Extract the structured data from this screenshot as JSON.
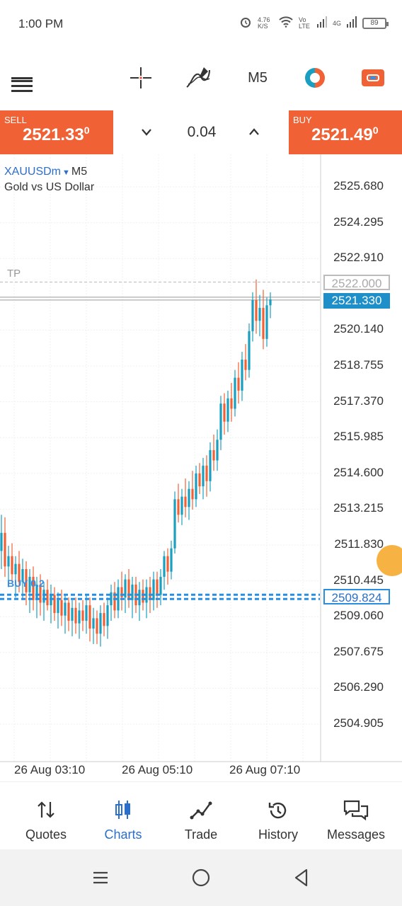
{
  "status_bar": {
    "time": "1:00 PM",
    "net_speed": "4.76 K/S",
    "sim1": "Vo LTE",
    "sim2": "4G",
    "battery": "89"
  },
  "toolbar": {
    "icons": [
      "menu-icon",
      "crosshair-icon",
      "indicator-icon",
      "trade-color-icon",
      "account-icon"
    ],
    "timeframe": "M5"
  },
  "trade": {
    "sell_label": "SELL",
    "sell_price_main": "2521.33",
    "sell_price_sup": "0",
    "buy_label": "BUY",
    "buy_price_main": "2521.49",
    "buy_price_sup": "0",
    "volume": "0.04",
    "sell_color": "#f06235",
    "buy_color": "#f06235"
  },
  "chart": {
    "symbol": "XAUUSDm",
    "timeframe": "M5",
    "description": "Gold vs US Dollar",
    "tp_label": "TP",
    "tp_price": "2522.000",
    "bid_price": "2521.330",
    "buy_order_price": "2509.824",
    "buy_order_label": "BUY 0.2",
    "y_ticks": [
      "2525.680",
      "2524.295",
      "2522.910",
      "2520.140",
      "2518.755",
      "2517.370",
      "2515.985",
      "2514.600",
      "2513.215",
      "2511.830",
      "2510.445",
      "2509.060",
      "2507.675",
      "2506.290",
      "2504.905"
    ],
    "x_ticks": [
      "26 Aug 03:10",
      "26 Aug 05:10",
      "26 Aug 07:10"
    ],
    "bull_color": "#1a9fc0",
    "bear_color": "#f06235",
    "line_color": "#2a8ee0"
  },
  "chart_data": {
    "type": "candlestick",
    "symbol": "XAUUSDm",
    "ylim": [
      2503.52,
      2527.07
    ],
    "candles": [
      {
        "o": 2511.6,
        "h": 2513.0,
        "l": 2510.9,
        "c": 2512.3
      },
      {
        "o": 2512.3,
        "h": 2512.9,
        "l": 2510.6,
        "c": 2511.0
      },
      {
        "o": 2511.0,
        "h": 2511.8,
        "l": 2510.2,
        "c": 2511.4
      },
      {
        "o": 2511.4,
        "h": 2511.9,
        "l": 2510.4,
        "c": 2510.7
      },
      {
        "o": 2510.7,
        "h": 2511.4,
        "l": 2509.8,
        "c": 2511.1
      },
      {
        "o": 2511.1,
        "h": 2511.6,
        "l": 2510.0,
        "c": 2510.4
      },
      {
        "o": 2510.4,
        "h": 2511.3,
        "l": 2509.7,
        "c": 2510.9
      },
      {
        "o": 2510.9,
        "h": 2511.2,
        "l": 2509.5,
        "c": 2510.0
      },
      {
        "o": 2510.0,
        "h": 2510.9,
        "l": 2509.2,
        "c": 2510.6
      },
      {
        "o": 2510.6,
        "h": 2511.0,
        "l": 2509.3,
        "c": 2509.7
      },
      {
        "o": 2509.7,
        "h": 2510.6,
        "l": 2509.0,
        "c": 2510.3
      },
      {
        "o": 2510.3,
        "h": 2510.7,
        "l": 2509.1,
        "c": 2509.6
      },
      {
        "o": 2509.6,
        "h": 2510.4,
        "l": 2508.9,
        "c": 2510.1
      },
      {
        "o": 2510.1,
        "h": 2510.5,
        "l": 2509.3,
        "c": 2509.5
      },
      {
        "o": 2509.5,
        "h": 2510.3,
        "l": 2508.8,
        "c": 2509.9
      },
      {
        "o": 2509.9,
        "h": 2510.2,
        "l": 2508.9,
        "c": 2509.2
      },
      {
        "o": 2509.2,
        "h": 2510.0,
        "l": 2508.6,
        "c": 2509.7
      },
      {
        "o": 2509.7,
        "h": 2510.1,
        "l": 2508.7,
        "c": 2509.1
      },
      {
        "o": 2509.1,
        "h": 2509.9,
        "l": 2508.4,
        "c": 2509.6
      },
      {
        "o": 2509.6,
        "h": 2509.8,
        "l": 2508.5,
        "c": 2508.9
      },
      {
        "o": 2508.9,
        "h": 2509.7,
        "l": 2508.3,
        "c": 2509.4
      },
      {
        "o": 2509.4,
        "h": 2509.8,
        "l": 2508.4,
        "c": 2508.8
      },
      {
        "o": 2508.8,
        "h": 2509.6,
        "l": 2508.2,
        "c": 2509.3
      },
      {
        "o": 2509.3,
        "h": 2509.7,
        "l": 2508.5,
        "c": 2508.9
      },
      {
        "o": 2508.9,
        "h": 2509.9,
        "l": 2508.4,
        "c": 2509.5
      },
      {
        "o": 2509.5,
        "h": 2509.8,
        "l": 2508.1,
        "c": 2508.6
      },
      {
        "o": 2508.6,
        "h": 2509.4,
        "l": 2508.0,
        "c": 2509.0
      },
      {
        "o": 2509.0,
        "h": 2509.3,
        "l": 2508.0,
        "c": 2508.4
      },
      {
        "o": 2508.4,
        "h": 2509.5,
        "l": 2507.9,
        "c": 2509.2
      },
      {
        "o": 2509.2,
        "h": 2509.6,
        "l": 2508.3,
        "c": 2508.7
      },
      {
        "o": 2508.7,
        "h": 2509.8,
        "l": 2508.2,
        "c": 2509.5
      },
      {
        "o": 2509.5,
        "h": 2510.3,
        "l": 2508.9,
        "c": 2510.0
      },
      {
        "o": 2510.0,
        "h": 2510.4,
        "l": 2509.0,
        "c": 2509.3
      },
      {
        "o": 2509.3,
        "h": 2510.5,
        "l": 2509.0,
        "c": 2510.2
      },
      {
        "o": 2510.2,
        "h": 2510.8,
        "l": 2509.3,
        "c": 2509.8
      },
      {
        "o": 2509.8,
        "h": 2510.7,
        "l": 2509.2,
        "c": 2510.5
      },
      {
        "o": 2510.5,
        "h": 2510.9,
        "l": 2509.4,
        "c": 2509.7
      },
      {
        "o": 2509.7,
        "h": 2510.6,
        "l": 2509.0,
        "c": 2510.3
      },
      {
        "o": 2510.3,
        "h": 2510.6,
        "l": 2509.2,
        "c": 2509.5
      },
      {
        "o": 2509.5,
        "h": 2510.4,
        "l": 2508.9,
        "c": 2510.1
      },
      {
        "o": 2510.1,
        "h": 2510.5,
        "l": 2509.3,
        "c": 2509.6
      },
      {
        "o": 2509.6,
        "h": 2510.5,
        "l": 2509.0,
        "c": 2510.2
      },
      {
        "o": 2510.2,
        "h": 2510.6,
        "l": 2509.2,
        "c": 2509.7
      },
      {
        "o": 2509.7,
        "h": 2510.8,
        "l": 2509.3,
        "c": 2510.5
      },
      {
        "o": 2510.5,
        "h": 2510.8,
        "l": 2509.4,
        "c": 2509.9
      },
      {
        "o": 2509.9,
        "h": 2510.9,
        "l": 2509.5,
        "c": 2510.6
      },
      {
        "o": 2510.6,
        "h": 2511.6,
        "l": 2510.1,
        "c": 2511.4
      },
      {
        "o": 2511.4,
        "h": 2511.7,
        "l": 2510.3,
        "c": 2510.8
      },
      {
        "o": 2510.8,
        "h": 2512.0,
        "l": 2510.5,
        "c": 2511.7
      },
      {
        "o": 2511.7,
        "h": 2513.9,
        "l": 2511.5,
        "c": 2513.6
      },
      {
        "o": 2513.6,
        "h": 2514.2,
        "l": 2512.7,
        "c": 2513.0
      },
      {
        "o": 2513.0,
        "h": 2514.0,
        "l": 2512.6,
        "c": 2513.7
      },
      {
        "o": 2513.7,
        "h": 2514.4,
        "l": 2512.9,
        "c": 2513.3
      },
      {
        "o": 2513.3,
        "h": 2514.3,
        "l": 2512.8,
        "c": 2514.0
      },
      {
        "o": 2514.0,
        "h": 2514.7,
        "l": 2513.2,
        "c": 2513.6
      },
      {
        "o": 2513.6,
        "h": 2514.9,
        "l": 2513.3,
        "c": 2514.6
      },
      {
        "o": 2514.6,
        "h": 2515.0,
        "l": 2513.8,
        "c": 2514.1
      },
      {
        "o": 2514.1,
        "h": 2515.2,
        "l": 2513.6,
        "c": 2514.9
      },
      {
        "o": 2514.9,
        "h": 2515.3,
        "l": 2513.7,
        "c": 2514.3
      },
      {
        "o": 2514.3,
        "h": 2515.8,
        "l": 2513.9,
        "c": 2515.5
      },
      {
        "o": 2515.5,
        "h": 2516.1,
        "l": 2514.7,
        "c": 2515.1
      },
      {
        "o": 2515.1,
        "h": 2516.3,
        "l": 2514.7,
        "c": 2515.9
      },
      {
        "o": 2515.9,
        "h": 2517.6,
        "l": 2515.5,
        "c": 2517.3
      },
      {
        "o": 2517.3,
        "h": 2517.7,
        "l": 2516.1,
        "c": 2516.6
      },
      {
        "o": 2516.6,
        "h": 2517.8,
        "l": 2516.2,
        "c": 2517.5
      },
      {
        "o": 2517.5,
        "h": 2518.1,
        "l": 2516.6,
        "c": 2517.1
      },
      {
        "o": 2517.1,
        "h": 2518.6,
        "l": 2516.8,
        "c": 2518.3
      },
      {
        "o": 2518.3,
        "h": 2518.9,
        "l": 2517.3,
        "c": 2517.8
      },
      {
        "o": 2517.8,
        "h": 2519.3,
        "l": 2517.4,
        "c": 2519.0
      },
      {
        "o": 2519.0,
        "h": 2519.6,
        "l": 2518.2,
        "c": 2518.6
      },
      {
        "o": 2518.6,
        "h": 2520.4,
        "l": 2518.3,
        "c": 2520.1
      },
      {
        "o": 2520.1,
        "h": 2521.6,
        "l": 2519.7,
        "c": 2521.3
      },
      {
        "o": 2521.3,
        "h": 2522.1,
        "l": 2520.0,
        "c": 2520.5
      },
      {
        "o": 2520.5,
        "h": 2521.5,
        "l": 2519.9,
        "c": 2521.0
      },
      {
        "o": 2521.0,
        "h": 2521.7,
        "l": 2519.4,
        "c": 2519.8
      },
      {
        "o": 2519.8,
        "h": 2521.4,
        "l": 2519.5,
        "c": 2521.1
      },
      {
        "o": 2521.1,
        "h": 2521.6,
        "l": 2520.6,
        "c": 2521.33
      }
    ]
  },
  "bottom_nav": {
    "items": [
      {
        "label": "Quotes",
        "icon": "quotes-icon"
      },
      {
        "label": "Charts",
        "icon": "charts-icon"
      },
      {
        "label": "Trade",
        "icon": "trade-icon"
      },
      {
        "label": "History",
        "icon": "history-icon"
      },
      {
        "label": "Messages",
        "icon": "messages-icon"
      }
    ],
    "active": "Charts",
    "active_color": "#2a6fc9"
  }
}
